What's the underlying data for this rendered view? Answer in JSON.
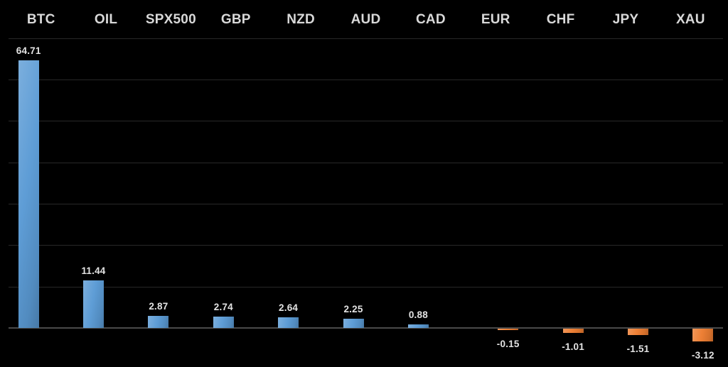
{
  "chart_data": {
    "type": "bar",
    "title": "",
    "xlabel": "",
    "ylabel": "",
    "categories": [
      "BTC",
      "OIL",
      "SPX500",
      "GBP",
      "NZD",
      "AUD",
      "CAD",
      "EUR",
      "CHF",
      "JPY",
      "XAU"
    ],
    "values": [
      64.71,
      11.44,
      2.87,
      2.74,
      2.64,
      2.25,
      0.88,
      -0.15,
      -1.01,
      -1.51,
      -3.12
    ],
    "value_labels": [
      "64.71",
      "11.44",
      "2.87",
      "2.74",
      "2.64",
      "2.25",
      "0.88",
      "-0.15",
      "-1.01",
      "-1.51",
      "-3.12"
    ],
    "ylim": [
      -10,
      70
    ],
    "grid_interval": 10,
    "grid_on": true,
    "legend": "none",
    "value_label_position": "outside-end",
    "colors": {
      "positive_bar": "#5B9BD5",
      "negative_bar": "#ED7D31",
      "background": "#000000",
      "grid_line": "#282828",
      "axis_line": "#4A4A4A",
      "category_text": "#D9D9D9",
      "value_text": "#E3E3E3"
    }
  }
}
